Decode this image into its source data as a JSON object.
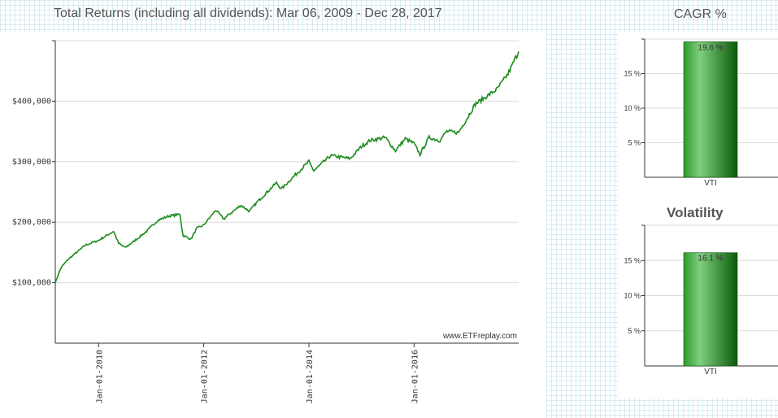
{
  "colors": {
    "line": "#1a8a1a",
    "bar_light": "#7fcf7f",
    "bar_dark": "#0a5a0a",
    "grid": "#dddddd",
    "axis": "#333333",
    "title": "#555555"
  },
  "chart_data": [
    {
      "type": "line",
      "title": "Total Returns (including all dividends): Mar 06, 2009 - Dec 28, 2017",
      "series": [
        {
          "values_desc": "",
          "points": [
            [
              "2009-03-06",
              100000
            ],
            [
              "2009-04-15",
              125000
            ],
            [
              "2009-06-01",
              138000
            ],
            [
              "2009-08-01",
              150000
            ],
            [
              "2009-10-01",
              162000
            ],
            [
              "2010-01-01",
              170000
            ],
            [
              "2010-04-15",
              185000
            ],
            [
              "2010-05-20",
              165000
            ],
            [
              "2010-07-05",
              158000
            ],
            [
              "2010-09-01",
              168000
            ],
            [
              "2010-12-01",
              185000
            ],
            [
              "2011-02-15",
              203000
            ],
            [
              "2011-05-01",
              210000
            ],
            [
              "2011-07-20",
              213000
            ],
            [
              "2011-08-10",
              178000
            ],
            [
              "2011-10-04",
              172000
            ],
            [
              "2011-11-15",
              190000
            ],
            [
              "2012-01-01",
              195000
            ],
            [
              "2012-03-25",
              220000
            ],
            [
              "2012-05-20",
              205000
            ],
            [
              "2012-06-01",
              208000
            ],
            [
              "2012-09-15",
              228000
            ],
            [
              "2012-11-15",
              218000
            ],
            [
              "2013-01-01",
              232000
            ],
            [
              "2013-05-20",
              265000
            ],
            [
              "2013-06-24",
              255000
            ],
            [
              "2013-09-15",
              275000
            ],
            [
              "2013-12-31",
              300000
            ],
            [
              "2014-02-04",
              285000
            ],
            [
              "2014-06-01",
              310000
            ],
            [
              "2014-10-15",
              305000
            ],
            [
              "2014-12-31",
              325000
            ],
            [
              "2015-03-01",
              335000
            ],
            [
              "2015-06-15",
              340000
            ],
            [
              "2015-08-25",
              318000
            ],
            [
              "2015-11-01",
              338000
            ],
            [
              "2016-01-01",
              330000
            ],
            [
              "2016-02-11",
              312000
            ],
            [
              "2016-04-15",
              340000
            ],
            [
              "2016-06-27",
              335000
            ],
            [
              "2016-08-15",
              350000
            ],
            [
              "2016-11-04",
              348000
            ],
            [
              "2016-12-31",
              370000
            ],
            [
              "2017-03-01",
              395000
            ],
            [
              "2017-05-01",
              405000
            ],
            [
              "2017-08-01",
              420000
            ],
            [
              "2017-10-15",
              445000
            ],
            [
              "2017-12-28",
              482000
            ]
          ]
        }
      ],
      "y_ticks": [
        "$100,000",
        "$200,000",
        "$300,000",
        "$400,000"
      ],
      "y_tick_values": [
        100000,
        200000,
        300000,
        400000
      ],
      "ylim": [
        0,
        500000
      ],
      "x_ticks": [
        "Jan-01-2010",
        "Jan-01-2012",
        "Jan-01-2014",
        "Jan-01-2016"
      ],
      "x_tick_values": [
        "2010-01-01",
        "2012-01-01",
        "2014-01-01",
        "2016-01-01"
      ],
      "xlim": [
        "2009-03-06",
        "2017-12-28"
      ],
      "grid": "horizontal",
      "watermark": "www.ETFreplay.com"
    },
    {
      "type": "bar",
      "title": "CAGR %",
      "categories": [
        "VTI"
      ],
      "values": [
        19.6
      ],
      "value_label": "19.6 %",
      "y_ticks": [
        "5 %",
        "10 %",
        "15 %"
      ],
      "y_tick_values": [
        5,
        10,
        15
      ],
      "ylim": [
        0,
        20
      ]
    },
    {
      "type": "bar",
      "title": "Volatility",
      "categories": [
        "VTI"
      ],
      "values": [
        16.1
      ],
      "value_label": "16.1 %",
      "y_ticks": [
        "5 %",
        "10 %",
        "15 %"
      ],
      "y_tick_values": [
        5,
        10,
        15
      ],
      "ylim": [
        0,
        20
      ]
    }
  ]
}
